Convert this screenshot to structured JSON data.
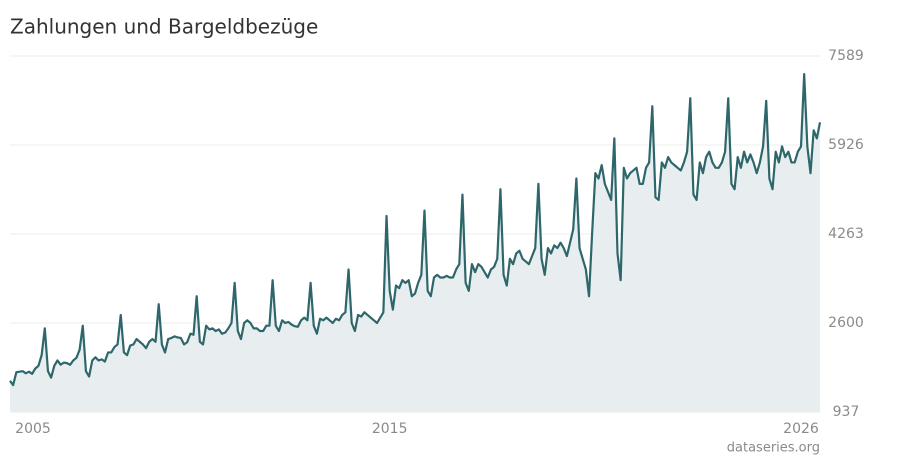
{
  "chart_data": {
    "type": "line",
    "title": "Zahlungen und Bargeldbezüge",
    "source": "dataseries.org",
    "color": "#2e676b",
    "fill": "#e8eef0",
    "grid": true,
    "ylim": [
      937,
      7589
    ],
    "yticks": [
      937,
      2600,
      4263,
      5926,
      7589
    ],
    "categories": [
      "2005",
      null,
      null,
      null,
      null,
      null,
      null,
      null,
      null,
      null,
      null,
      null,
      null,
      null,
      null,
      null,
      null,
      null,
      null,
      null,
      null,
      null,
      null,
      null,
      null,
      null,
      null,
      null,
      null,
      null,
      null,
      null,
      null,
      null,
      null,
      null,
      null,
      null,
      null,
      null,
      null,
      null,
      null,
      null,
      null,
      null,
      null,
      null,
      null,
      null,
      null,
      null,
      null,
      null,
      null,
      null,
      null,
      null,
      null,
      null,
      null,
      null,
      null,
      null,
      null,
      null,
      null,
      null,
      null,
      null,
      null,
      null,
      null,
      null,
      null,
      null,
      null,
      null,
      null,
      null,
      null,
      null,
      null,
      null,
      null,
      null,
      null,
      null,
      null,
      null,
      null,
      null,
      null,
      null,
      null,
      null,
      null,
      null,
      null,
      null,
      null,
      null,
      null,
      null,
      null,
      null,
      null,
      null,
      null,
      null,
      null,
      null,
      null,
      null,
      null,
      null,
      null,
      null,
      null,
      null,
      "2015",
      null,
      null,
      null,
      null,
      null,
      null,
      null,
      null,
      null,
      null,
      null,
      null,
      null,
      null,
      null,
      null,
      null,
      null,
      null,
      null,
      null,
      null,
      null,
      null,
      null,
      null,
      null,
      null,
      null,
      null,
      null,
      null,
      null,
      null,
      null,
      null,
      null,
      null,
      null,
      null,
      null,
      null,
      null,
      null,
      null,
      null,
      null,
      null,
      null,
      null,
      null,
      null,
      null,
      null,
      null,
      null,
      null,
      null,
      null,
      null,
      null,
      null,
      null,
      null,
      null,
      null,
      null,
      null,
      null,
      null,
      null,
      null,
      null,
      null,
      null,
      null,
      null,
      null,
      null,
      null,
      null,
      null,
      null,
      null,
      null,
      null,
      null,
      null,
      null,
      null,
      null,
      null,
      null,
      null,
      null,
      null,
      null,
      null,
      null,
      null,
      null,
      null,
      null,
      null,
      null,
      null,
      null,
      null,
      null,
      null,
      null,
      null,
      null,
      null,
      null,
      null,
      null,
      null,
      null,
      null,
      null,
      null,
      null,
      null,
      null,
      null,
      null,
      null,
      null,
      null,
      null,
      "2026",
      null,
      null,
      null,
      null
    ],
    "values": [
      1520,
      1440,
      1680,
      1690,
      1700,
      1660,
      1690,
      1650,
      1750,
      1800,
      2000,
      2500,
      1700,
      1580,
      1800,
      1900,
      1820,
      1860,
      1850,
      1820,
      1900,
      1950,
      2100,
      2550,
      1700,
      1600,
      1900,
      1960,
      1900,
      1920,
      1880,
      2050,
      2050,
      2150,
      2200,
      2750,
      2050,
      2000,
      2180,
      2200,
      2300,
      2250,
      2200,
      2130,
      2250,
      2300,
      2250,
      2950,
      2200,
      2050,
      2300,
      2320,
      2350,
      2330,
      2320,
      2200,
      2240,
      2400,
      2380,
      3100,
      2250,
      2200,
      2550,
      2480,
      2500,
      2450,
      2480,
      2400,
      2420,
      2500,
      2600,
      3350,
      2450,
      2300,
      2600,
      2650,
      2600,
      2500,
      2500,
      2450,
      2450,
      2550,
      2550,
      3400,
      2550,
      2450,
      2650,
      2600,
      2620,
      2570,
      2540,
      2530,
      2650,
      2700,
      2650,
      3350,
      2550,
      2400,
      2680,
      2650,
      2700,
      2650,
      2600,
      2680,
      2650,
      2750,
      2800,
      3600,
      2600,
      2450,
      2750,
      2720,
      2800,
      2750,
      2700,
      2650,
      2600,
      2700,
      2800,
      4600,
      3200,
      2850,
      3300,
      3250,
      3400,
      3350,
      3400,
      3100,
      3150,
      3350,
      3500,
      4700,
      3200,
      3100,
      3450,
      3500,
      3450,
      3450,
      3480,
      3450,
      3450,
      3600,
      3700,
      5000,
      3350,
      3200,
      3700,
      3550,
      3700,
      3650,
      3550,
      3450,
      3600,
      3650,
      3800,
      5100,
      3500,
      3300,
      3800,
      3700,
      3900,
      3950,
      3800,
      3750,
      3700,
      3850,
      4000,
      5200,
      3800,
      3500,
      4000,
      3900,
      4050,
      4000,
      4100,
      4000,
      3850,
      4100,
      4350,
      5300,
      4000,
      3800,
      3600,
      3100,
      4300,
      5400,
      5300,
      5550,
      5200,
      5050,
      4900,
      6050,
      3900,
      3400,
      5500,
      5300,
      5400,
      5450,
      5500,
      5200,
      5200,
      5500,
      5600,
      6650,
      4950,
      4900,
      5600,
      5500,
      5700,
      5600,
      5550,
      5500,
      5450,
      5600,
      5800,
      6800,
      5000,
      4900,
      5600,
      5400,
      5700,
      5800,
      5600,
      5500,
      5500,
      5600,
      5800,
      6800,
      5200,
      5100,
      5700,
      5500,
      5800,
      5600,
      5750,
      5600,
      5400,
      5600,
      5900,
      6750,
      5300,
      5100,
      5800,
      5600,
      5900,
      5700,
      5800,
      5600,
      5600,
      5800,
      5900,
      7250,
      5900,
      5400,
      6200,
      6050,
      6350
    ]
  }
}
